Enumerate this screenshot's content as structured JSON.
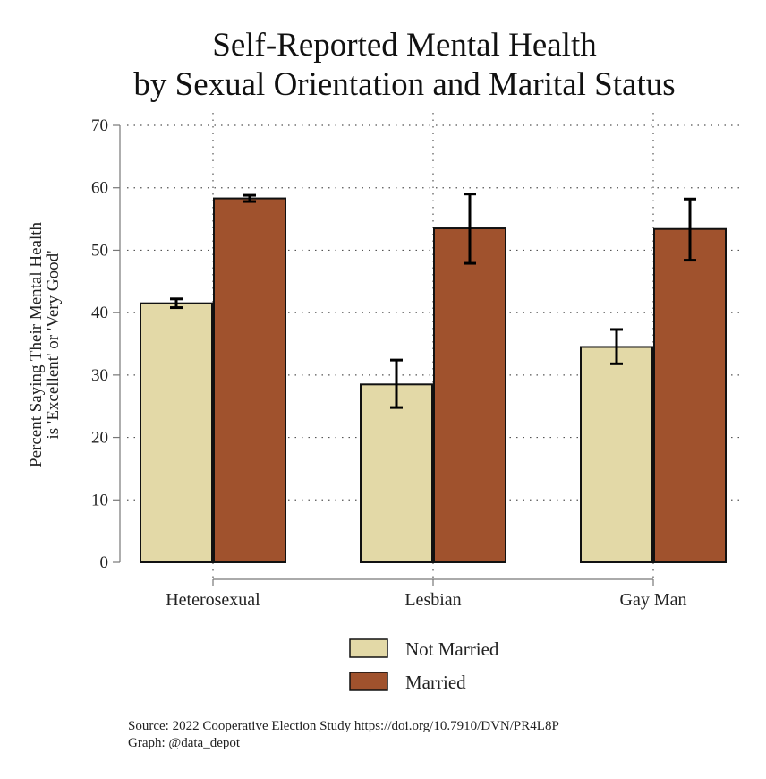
{
  "chart_data": {
    "type": "bar",
    "title": [
      "Self-Reported Mental Health",
      "by Sexual Orientation and Marital Status"
    ],
    "ylabel": [
      "Percent Saying Their Mental Health",
      "is 'Excellent' or 'Very Good'"
    ],
    "xlabel": "",
    "categories": [
      "Heterosexual",
      "Lesbian",
      "Gay Man"
    ],
    "ylim": [
      0,
      70
    ],
    "yticks": [
      0,
      10,
      20,
      30,
      40,
      50,
      60,
      70
    ],
    "grid": "dotted",
    "legend_position": "bottom",
    "series": [
      {
        "name": "Not Married",
        "color": "#e3d9a7",
        "values": [
          41.5,
          28.5,
          34.5
        ],
        "ci_low": [
          40.8,
          24.8,
          31.8
        ],
        "ci_high": [
          42.2,
          32.4,
          37.3
        ]
      },
      {
        "name": "Married",
        "color": "#a0522d",
        "values": [
          58.3,
          53.5,
          53.4
        ],
        "ci_low": [
          57.8,
          47.9,
          48.4
        ],
        "ci_high": [
          58.8,
          59.0,
          58.2
        ]
      }
    ],
    "notes": [
      "Source: 2022 Cooperative Election Study https://doi.org/10.7910/DVN/PR4L8P",
      "Graph: @data_depot"
    ]
  }
}
